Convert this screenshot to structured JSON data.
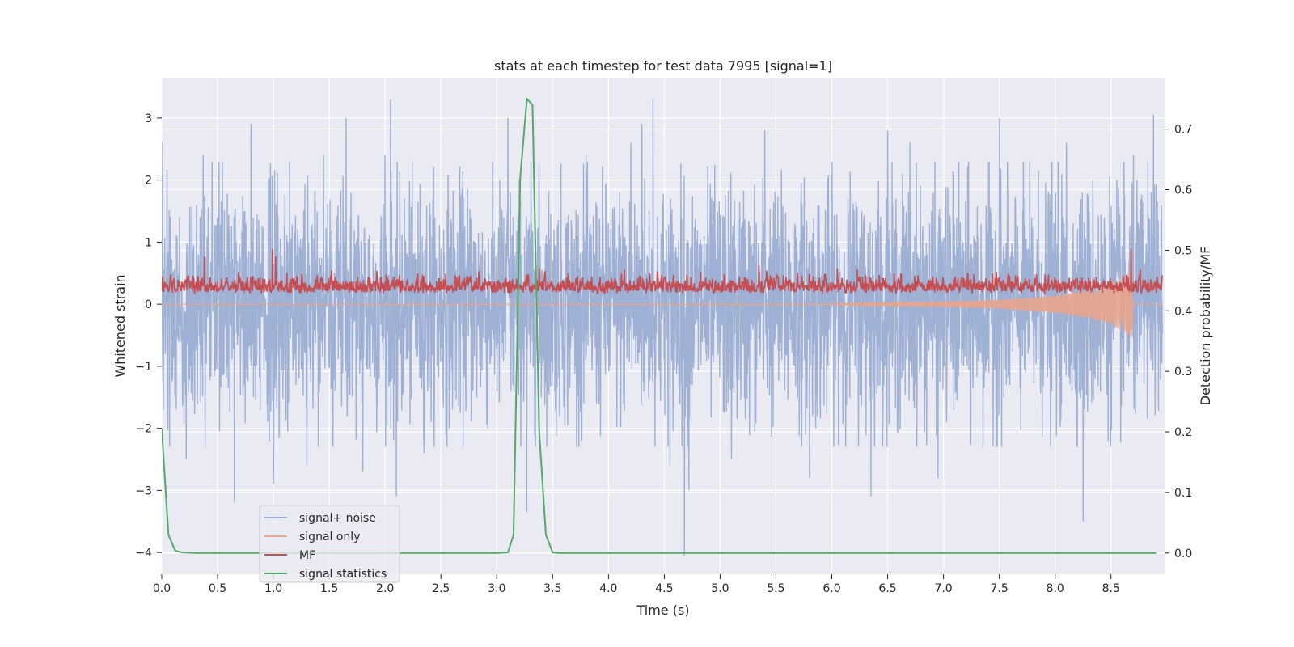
{
  "chart_data": {
    "type": "line",
    "title": "stats at each timestep for test data 7995 [signal=1]",
    "xlabel": "Time (s)",
    "ylabel": "Whitened strain",
    "y2label": "Detection probability/MF",
    "xlim": [
      0.0,
      8.98
    ],
    "ylim": [
      -4.35,
      3.65
    ],
    "y2lim": [
      -0.035,
      0.785
    ],
    "xticks": [
      "0.0",
      "0.5",
      "1.0",
      "1.5",
      "2.0",
      "2.5",
      "3.0",
      "3.5",
      "4.0",
      "4.5",
      "5.0",
      "5.5",
      "6.0",
      "6.5",
      "7.0",
      "7.5",
      "8.0",
      "8.5"
    ],
    "yticks": [
      "3",
      "2",
      "1",
      "0",
      "−1",
      "−2",
      "−3",
      "−4"
    ],
    "y2ticks": [
      "0.7",
      "0.6",
      "0.5",
      "0.4",
      "0.3",
      "0.2",
      "0.1",
      "0.0"
    ],
    "grid": true,
    "legend_position": "lower-left",
    "series": [
      {
        "name": "signal+ noise",
        "axis": "left",
        "color": "#9aaed3",
        "style": "noise",
        "description": "whitened noisy strain, roughly within ±1.9 with excursions to about ±3.3",
        "peaks": [
          [
            0.0,
            2.6
          ],
          [
            0.07,
            -2.3
          ],
          [
            0.22,
            -2.5
          ],
          [
            0.37,
            2.4
          ],
          [
            0.65,
            -3.2
          ],
          [
            0.8,
            2.9
          ],
          [
            1.0,
            -2.9
          ],
          [
            1.3,
            -2.6
          ],
          [
            1.45,
            2.4
          ],
          [
            1.65,
            3.0
          ],
          [
            1.8,
            -2.7
          ],
          [
            2.0,
            2.4
          ],
          [
            2.05,
            3.3
          ],
          [
            2.1,
            -3.1
          ],
          [
            2.35,
            -2.4
          ],
          [
            3.1,
            3.0
          ],
          [
            3.27,
            -3.35
          ],
          [
            3.8,
            2.4
          ],
          [
            4.2,
            2.6
          ],
          [
            4.3,
            2.9
          ],
          [
            4.4,
            3.3
          ],
          [
            4.55,
            -2.6
          ],
          [
            4.68,
            -4.05
          ],
          [
            4.72,
            -3.0
          ],
          [
            5.1,
            -2.5
          ],
          [
            5.4,
            2.8
          ],
          [
            5.8,
            -2.8
          ],
          [
            6.35,
            -3.1
          ],
          [
            6.5,
            2.8
          ],
          [
            6.7,
            2.6
          ],
          [
            6.95,
            -2.8
          ],
          [
            7.5,
            3.0
          ],
          [
            8.1,
            2.6
          ],
          [
            8.25,
            -3.5
          ],
          [
            8.7,
            2.4
          ],
          [
            8.88,
            3.05
          ]
        ]
      },
      {
        "name": "signal only",
        "axis": "left",
        "color": "#e8a58c",
        "style": "chirp",
        "description": "injected chirp signal, amplitude growing toward merger near 8.7 s",
        "envelope": [
          [
            6.0,
            0.01
          ],
          [
            7.0,
            0.04
          ],
          [
            7.5,
            0.07
          ],
          [
            8.0,
            0.14
          ],
          [
            8.3,
            0.23
          ],
          [
            8.5,
            0.33
          ],
          [
            8.6,
            0.42
          ],
          [
            8.66,
            0.52
          ],
          [
            8.69,
            0.55
          ],
          [
            8.7,
            0.0
          ]
        ],
        "merger_time": 8.7
      },
      {
        "name": "MF",
        "axis": "right",
        "color": "#c44e52",
        "style": "band",
        "description": "matched filter output, fluctuating around 0.44 on the right axis",
        "baseline": 0.4,
        "typical_max": 0.47,
        "spikes": [
          [
            0.38,
            0.49
          ],
          [
            0.99,
            0.502
          ],
          [
            1.02,
            0.49
          ],
          [
            3.38,
            0.47
          ],
          [
            5.35,
            0.475
          ],
          [
            6.05,
            0.47
          ],
          [
            8.68,
            0.503
          ]
        ]
      },
      {
        "name": "signal statistics",
        "axis": "right",
        "color": "#55a868",
        "style": "line",
        "x": [
          0.0,
          0.06,
          0.12,
          0.18,
          0.3,
          0.6,
          1.0,
          2.0,
          3.0,
          3.1,
          3.15,
          3.21,
          3.27,
          3.32,
          3.38,
          3.44,
          3.5,
          3.56,
          3.62,
          4.0,
          5.0,
          6.0,
          7.0,
          8.0,
          8.9
        ],
        "y": [
          0.205,
          0.03,
          0.004,
          0.001,
          0.0,
          0.0,
          0.0,
          0.0,
          0.0,
          0.001,
          0.03,
          0.62,
          0.75,
          0.74,
          0.2,
          0.03,
          0.001,
          0.0,
          0.0,
          0.0,
          0.0,
          0.0,
          0.0,
          0.0,
          0.0
        ]
      }
    ]
  }
}
